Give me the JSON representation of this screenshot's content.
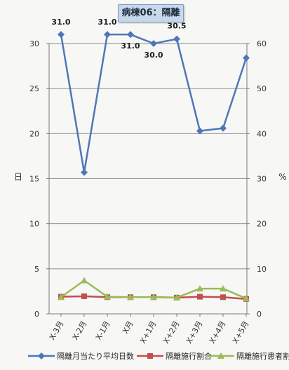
{
  "chart_data": {
    "type": "line",
    "title": "病棟06：隔離",
    "categories": [
      "X-3月",
      "X-2月",
      "X-1月",
      "X月",
      "X+1月",
      "X+2月",
      "X+3月",
      "X+4月",
      "X+5月"
    ],
    "y_left": {
      "label": "日",
      "ylim": [
        0,
        30
      ],
      "ticks": [
        "0",
        "5",
        "10",
        "15",
        "20",
        "25",
        "30"
      ]
    },
    "y_right": {
      "label": "%",
      "ylim": [
        0,
        60
      ],
      "ticks": [
        "0",
        "10",
        "20",
        "30",
        "40",
        "50",
        "60"
      ]
    },
    "grid": true,
    "legend_position": "bottom",
    "series": [
      {
        "name": "隔離月当たり平均日数",
        "axis": "left",
        "color": "#4f77b7",
        "marker": "diamond",
        "values": [
          31.0,
          15.7,
          31.0,
          31.0,
          30.0,
          30.5,
          20.3,
          20.6,
          28.4
        ],
        "data_labels": [
          "31.0",
          "",
          "31.0",
          "31.0",
          "30.0",
          "30.5",
          "",
          "",
          ""
        ]
      },
      {
        "name": "隔離施行割合",
        "axis": "right",
        "color": "#bf504d",
        "marker": "square",
        "values": [
          3.8,
          3.9,
          3.7,
          3.7,
          3.7,
          3.6,
          3.8,
          3.7,
          3.3
        ]
      },
      {
        "name": "隔離施行患者割合",
        "axis": "right",
        "color": "#9bbb59",
        "marker": "triangle",
        "values": [
          3.7,
          7.4,
          3.8,
          3.7,
          3.7,
          3.6,
          5.6,
          5.6,
          3.4
        ]
      }
    ]
  }
}
